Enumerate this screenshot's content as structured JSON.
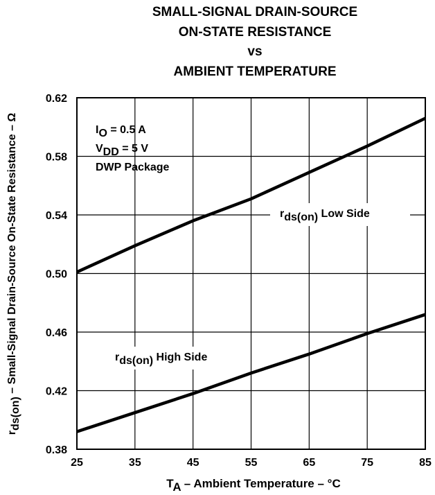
{
  "chart_data": {
    "type": "line",
    "title_lines": [
      "SMALL-SIGNAL DRAIN-SOURCE",
      "ON-STATE RESISTANCE",
      "vs",
      "AMBIENT TEMPERATURE"
    ],
    "xlabel": {
      "main": "T",
      "sub": "A",
      "rest": " – Ambient Temperature – °C"
    },
    "ylabel": {
      "main": "r",
      "sub": "ds(on)",
      "rest": " – Small-Signal Drain-Source On-State Resistance – Ω"
    },
    "xlim": [
      25,
      85
    ],
    "ylim": [
      0.38,
      0.62
    ],
    "x_ticks": [
      25,
      35,
      45,
      55,
      65,
      75,
      85
    ],
    "y_ticks": [
      "0.38",
      "0.42",
      "0.46",
      "0.50",
      "0.54",
      "0.58",
      "0.62"
    ],
    "grid": true,
    "conditions": [
      {
        "main": "I",
        "sub": "O",
        "rest": " = 0.5 A"
      },
      {
        "main": "V",
        "sub": "DD",
        "rest": " = 5 V"
      },
      {
        "main": "DWP Package",
        "sub": "",
        "rest": ""
      }
    ],
    "series": [
      {
        "name": "Low Side",
        "label": {
          "main": "r",
          "sub": "ds(on)",
          "rest": " Low Side"
        },
        "x": [
          25,
          35,
          45,
          55,
          65,
          75,
          85
        ],
        "y": [
          0.501,
          0.519,
          0.536,
          0.551,
          0.569,
          0.587,
          0.606
        ]
      },
      {
        "name": "High Side",
        "label": {
          "main": "r",
          "sub": "ds(on)",
          "rest": " High Side"
        },
        "x": [
          25,
          35,
          45,
          55,
          65,
          75,
          85
        ],
        "y": [
          0.392,
          0.405,
          0.418,
          0.432,
          0.445,
          0.459,
          0.472
        ]
      }
    ]
  }
}
